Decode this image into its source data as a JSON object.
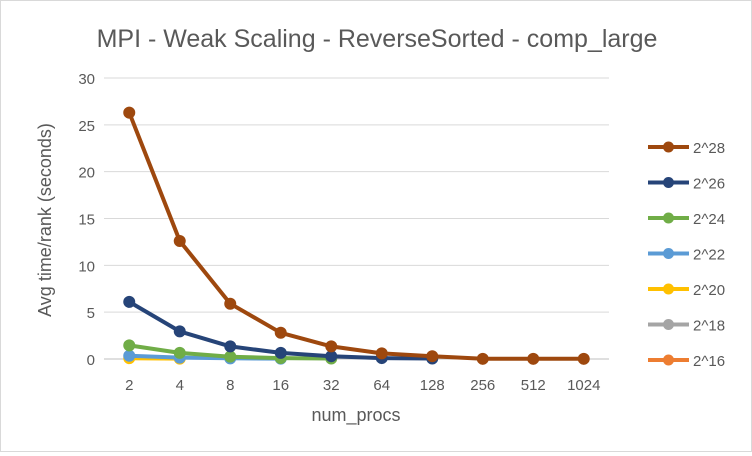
{
  "chart_data": {
    "type": "line",
    "title": "MPI - Weak Scaling -  ReverseSorted - comp_large",
    "xlabel": "num_procs",
    "ylabel": "Avg time/rank (seconds)",
    "categories": [
      "2",
      "4",
      "8",
      "16",
      "32",
      "64",
      "128",
      "256",
      "512",
      "1024"
    ],
    "ylim": [
      0,
      30
    ],
    "yticks": [
      0,
      5,
      10,
      15,
      20,
      25,
      30
    ],
    "grid": true,
    "legend_position": "right",
    "series": [
      {
        "name": "2^28",
        "color": "#9E480E",
        "values": [
          26.3,
          12.6,
          5.9,
          2.8,
          1.35,
          0.6,
          0.3,
          0.02,
          0.02,
          0.02
        ]
      },
      {
        "name": "2^26",
        "color": "#264478",
        "values": [
          6.1,
          2.95,
          1.35,
          0.65,
          0.3,
          0.1,
          0.05,
          null,
          null,
          null
        ]
      },
      {
        "name": "2^24",
        "color": "#70AD47",
        "values": [
          1.45,
          0.65,
          0.25,
          0.1,
          0.05,
          null,
          null,
          null,
          null,
          null
        ]
      },
      {
        "name": "2^22",
        "color": "#5B9BD5",
        "values": [
          0.35,
          0.15,
          0.07,
          0.04,
          null,
          null,
          null,
          null,
          null,
          null
        ]
      },
      {
        "name": "2^20",
        "color": "#FFC000",
        "values": [
          0.09,
          0.04,
          null,
          null,
          null,
          null,
          null,
          null,
          null,
          null
        ]
      },
      {
        "name": "2^18",
        "color": "#A5A5A5",
        "values": [
          null,
          null,
          null,
          null,
          null,
          null,
          null,
          null,
          null,
          null
        ]
      },
      {
        "name": "2^16",
        "color": "#ED7D31",
        "values": [
          null,
          null,
          null,
          null,
          null,
          null,
          null,
          null,
          null,
          null
        ]
      }
    ]
  }
}
